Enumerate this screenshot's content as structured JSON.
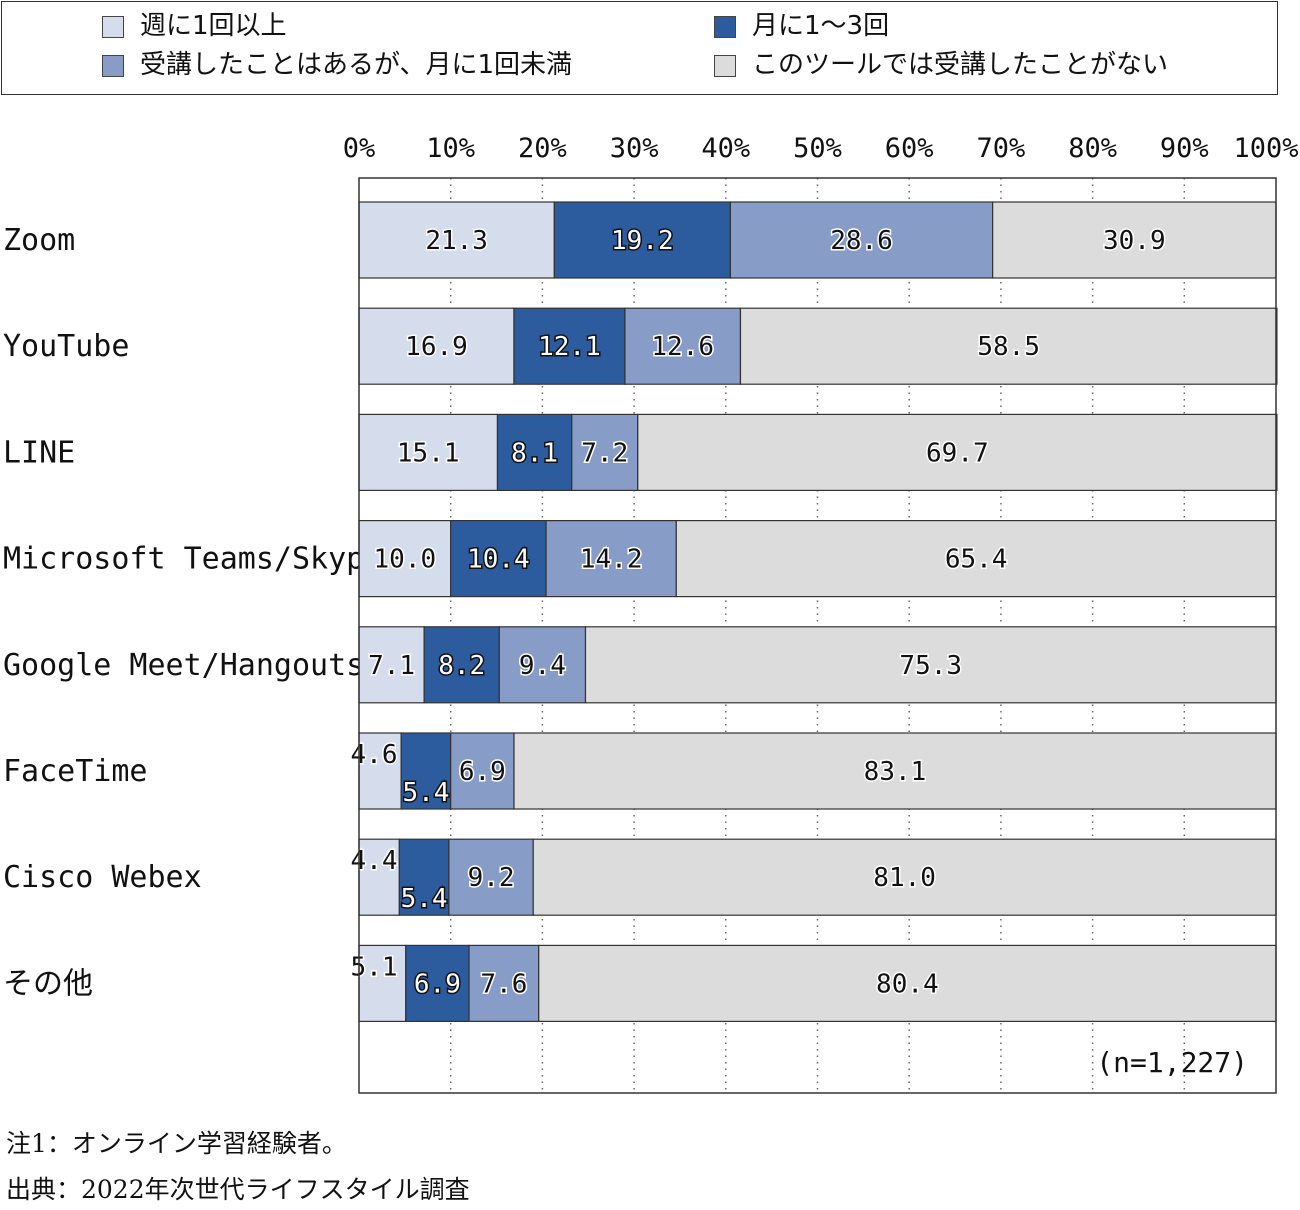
{
  "chart_data": {
    "type": "bar",
    "orientation": "horizontal",
    "stacked": "percent",
    "categories": [
      "Zoom",
      "YouTube",
      "LINE",
      "Microsoft Teams/Skype",
      "Google Meet/Hangouts",
      "FaceTime",
      "Cisco Webex",
      "その他"
    ],
    "series": [
      {
        "name": "週に1回以上",
        "color": "#d5dcec",
        "values": [
          21.3,
          16.9,
          15.1,
          10.0,
          7.1,
          4.6,
          4.4,
          5.1
        ]
      },
      {
        "name": "月に1～3回",
        "color": "#2d5c9e",
        "values": [
          19.2,
          12.1,
          8.1,
          10.4,
          8.2,
          5.4,
          5.4,
          6.9
        ]
      },
      {
        "name": "受講したことはあるが、月に1回未満",
        "color": "#879cc7",
        "values": [
          28.6,
          12.6,
          7.2,
          14.2,
          9.4,
          6.9,
          9.2,
          7.6
        ]
      },
      {
        "name": "このツールでは受講したことがない",
        "color": "#dcdcdc",
        "values": [
          30.9,
          58.5,
          69.7,
          65.4,
          75.3,
          83.1,
          81.0,
          80.4
        ]
      }
    ],
    "xlim": [
      0,
      100
    ],
    "x_ticks": [
      "0%",
      "10%",
      "20%",
      "30%",
      "40%",
      "50%",
      "60%",
      "70%",
      "80%",
      "90%",
      "100%"
    ],
    "grid": true,
    "legend_position": "top",
    "sample_note": "(n=1,227)"
  },
  "notes": {
    "note1": "注1：オンライン学習経験者。",
    "source": "出典：2022年次世代ライフスタイル調査"
  }
}
